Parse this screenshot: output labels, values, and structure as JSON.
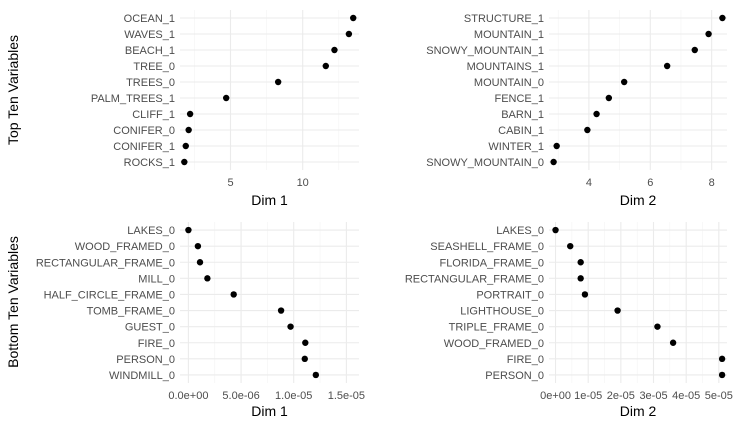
{
  "row_labels": [
    "Top Ten Variables",
    "Bottom Ten Variables"
  ],
  "chart_data": [
    {
      "type": "scatter",
      "panel": "top-left",
      "xlabel": "Dim 1",
      "xlim": [
        1.5,
        13.9
      ],
      "xticks": [
        5,
        10
      ],
      "xtick_labels": [
        "5",
        "10"
      ],
      "categories": [
        "OCEAN_1",
        "WAVES_1",
        "BEACH_1",
        "TREE_0",
        "TREES_0",
        "PALM_TREES_1",
        "CLIFF_1",
        "CONIFER_0",
        "CONIFER_1",
        "ROCKS_1"
      ],
      "values": [
        13.5,
        13.2,
        12.2,
        11.6,
        8.3,
        4.7,
        2.2,
        2.1,
        1.9,
        1.8
      ]
    },
    {
      "type": "scatter",
      "panel": "top-right",
      "xlabel": "Dim 2",
      "xlim": [
        2.7,
        8.5
      ],
      "xticks": [
        4,
        6,
        8
      ],
      "xtick_labels": [
        "4",
        "6",
        "8"
      ],
      "categories": [
        "STRUCTURE_1",
        "MOUNTAIN_1",
        "SNOWY_MOUNTAIN_1",
        "MOUNTAINS_1",
        "MOUNTAIN_0",
        "FENCE_1",
        "BARN_1",
        "CABIN_1",
        "WINTER_1",
        "SNOWY_MOUNTAIN_0"
      ],
      "values": [
        8.35,
        7.9,
        7.45,
        6.55,
        5.15,
        4.65,
        4.25,
        3.95,
        2.95,
        2.85
      ]
    },
    {
      "type": "scatter",
      "panel": "bottom-left",
      "xlabel": "Dim 1",
      "xlim": [
        -8e-07,
        1.62e-05
      ],
      "xticks": [
        0,
        5e-06,
        1e-05,
        1.5e-05
      ],
      "xtick_labels": [
        "0.0e+00",
        "5.0e-06",
        "1.0e-05",
        "1.5e-05"
      ],
      "categories": [
        "LAKES_0",
        "WOOD_FRAMED_0",
        "RECTANGULAR_FRAME_0",
        "MILL_0",
        "HALF_CIRCLE_FRAME_0",
        "TOMB_FRAME_0",
        "GUEST_0",
        "FIRE_0",
        "PERSON_0",
        "WINDMILL_0"
      ],
      "values": [
        0.0,
        9e-07,
        1.1e-06,
        1.8e-06,
        4.3e-06,
        8.8e-06,
        9.7e-06,
        1.11e-05,
        1.105e-05,
        1.21e-05
      ]
    },
    {
      "type": "scatter",
      "panel": "bottom-right",
      "xlabel": "Dim 2",
      "xlim": [
        -2e-06,
        5.25e-05
      ],
      "xticks": [
        0,
        1e-05,
        2e-05,
        3e-05,
        4e-05,
        5e-05
      ],
      "xtick_labels": [
        "0e+00",
        "1e-05",
        "2e-05",
        "3e-05",
        "4e-05",
        "5e-05"
      ],
      "categories": [
        "LAKES_0",
        "SEASHELL_FRAME_0",
        "FLORIDA_FRAME_0",
        "RECTANGULAR_FRAME_0",
        "PORTRAIT_0",
        "LIGHTHOUSE_0",
        "TRIPLE_FRAME_0",
        "WOOD_FRAMED_0",
        "FIRE_0",
        "PERSON_0"
      ],
      "values": [
        0.0,
        4.5e-06,
        7.7e-06,
        7.7e-06,
        9e-06,
        1.9e-05,
        3.12e-05,
        3.6e-05,
        5.1e-05,
        5.1e-05
      ]
    }
  ]
}
